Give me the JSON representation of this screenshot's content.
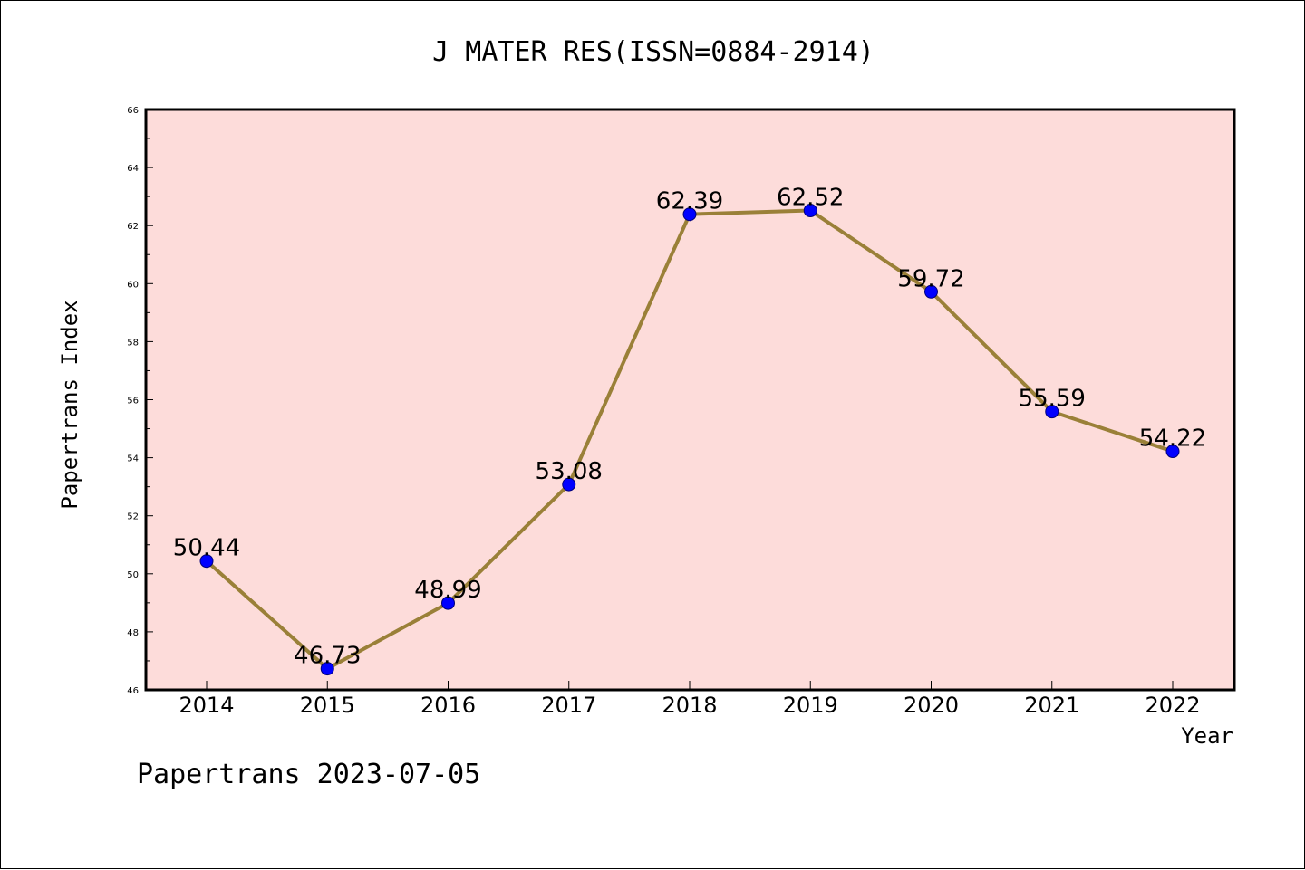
{
  "chart_data": {
    "type": "line",
    "title": "J MATER RES(ISSN=0884-2914)",
    "xlabel": "Year",
    "ylabel": "Papertrans Index",
    "categories": [
      "2014",
      "2015",
      "2016",
      "2017",
      "2018",
      "2019",
      "2020",
      "2021",
      "2022"
    ],
    "values": [
      50.44,
      46.73,
      48.99,
      53.08,
      62.39,
      62.52,
      59.72,
      55.59,
      54.22
    ],
    "data_labels": [
      "50.44",
      "46.73",
      "48.99",
      "53.08",
      "62.39",
      "62.52",
      "59.72",
      "55.59",
      "54.22"
    ],
    "ylim": [
      46,
      66
    ],
    "yticks": [
      "46",
      "48",
      "50",
      "52",
      "54",
      "56",
      "58",
      "60",
      "62",
      "64",
      "66"
    ],
    "grid": false,
    "colors": {
      "plot_background": "#fddcda",
      "line": "#9a8038",
      "marker": "#0000ff",
      "marker_edge": "#00007a"
    }
  },
  "footer": "Papertrans 2023-07-05"
}
